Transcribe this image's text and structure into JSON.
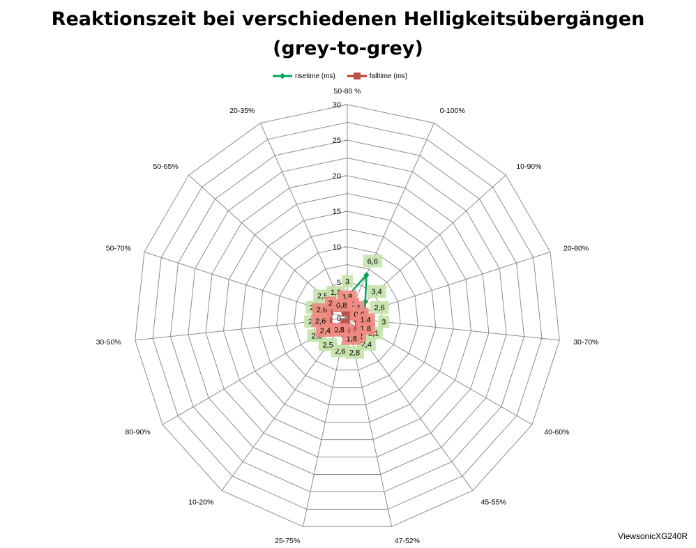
{
  "chart_data": {
    "type": "radar",
    "title_line1": "Reaktionszeit bei verschiedenen Helligkeitsübergängen",
    "title_line2": "(grey-to-grey)",
    "categories": [
      "50-80 %",
      "0-100%",
      "10-90%",
      "20-80%",
      "30-70%",
      "40-60%",
      "45-55%",
      "47-52%",
      "25-75%",
      "10-20%",
      "80-90%",
      "30-50%",
      "50-70%",
      "50-65%",
      "20-35%"
    ],
    "rlim": [
      0,
      30
    ],
    "ticks": [
      "0",
      "5",
      "10",
      "15",
      "20",
      "25",
      "30"
    ],
    "tick_values": [
      0,
      5,
      10,
      15,
      20,
      25,
      30
    ],
    "grid": true,
    "legend_position": "top",
    "series": [
      {
        "name": "risetime (ms)",
        "color": "#00a651",
        "label_color": "#c3e2a8",
        "values": [
          3,
          6.6,
          3.4,
          2.6,
          3,
          2.1,
          2.4,
          2.8,
          2.6,
          2.5,
          2.8,
          2.6,
          2.6,
          2.5,
          1.8
        ],
        "labels": [
          "3",
          "6,6",
          "3,4",
          "2,6",
          "3",
          "2,1",
          "2,4",
          "2,8",
          "2,6",
          "2,5",
          "2,8",
          "2,6",
          "2,6",
          "2,5",
          "1,8"
        ]
      },
      {
        "name": "falltime (ms)",
        "color": "#c0392b",
        "label_color": "#f08a82",
        "values": [
          1.8,
          1,
          1,
          0.6,
          1.4,
          1.8,
          2,
          1.8,
          0.6,
          0.8,
          2.4,
          2.6,
          2.6,
          2,
          0.8
        ],
        "labels": [
          "1,8",
          "1",
          "1",
          "0,6",
          "1,4",
          "1,8",
          "2",
          "1,8",
          "0,6",
          "0,8",
          "2,4",
          "2,6",
          "2,6",
          "2",
          "0,8"
        ]
      }
    ],
    "watermark": "ViewsonicXG240R"
  }
}
